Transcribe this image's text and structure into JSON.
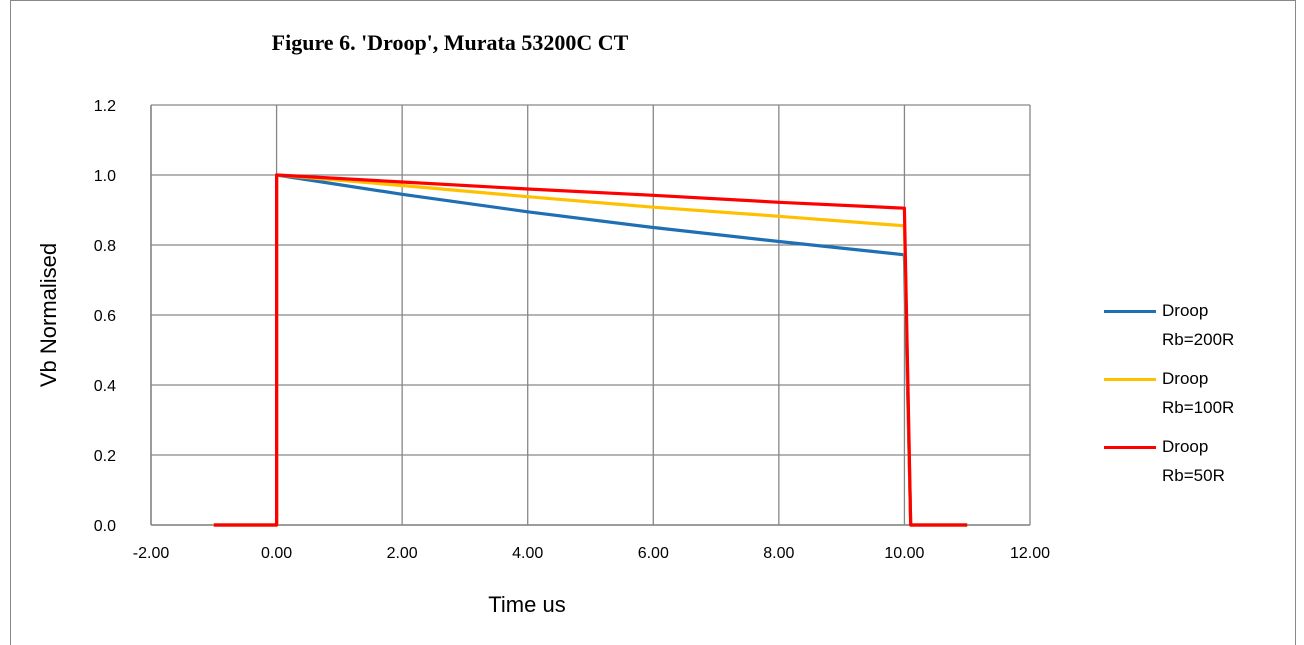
{
  "chart_data": {
    "type": "line",
    "title": "Figure 6. 'Droop', Murata 53200C CT",
    "xlabel": "Time us",
    "ylabel": "Vb Normalised",
    "xlim": [
      -2,
      12
    ],
    "ylim": [
      0,
      1.2
    ],
    "xticks": [
      "-2.00",
      "0.00",
      "2.00",
      "4.00",
      "6.00",
      "8.00",
      "10.00",
      "12.00"
    ],
    "yticks": [
      "0.0",
      "0.2",
      "0.4",
      "0.6",
      "0.8",
      "1.0",
      "1.2"
    ],
    "grid": true,
    "legend": "right",
    "series": [
      {
        "name": "Droop Rb=200R",
        "name_lines": [
          "Droop",
          "Rb=200R"
        ],
        "color": "#1F6FB4",
        "x": [
          -1,
          0,
          0,
          2,
          4,
          6,
          8,
          10,
          10.1,
          11
        ],
        "y": [
          0,
          0,
          1.0,
          0.945,
          0.895,
          0.85,
          0.81,
          0.772,
          0,
          0
        ]
      },
      {
        "name": "Droop Rb=100R",
        "name_lines": [
          "Droop",
          "Rb=100R"
        ],
        "color": "#FFC000",
        "x": [
          -1,
          0,
          0,
          2,
          4,
          6,
          8,
          10,
          10.1,
          11
        ],
        "y": [
          0,
          0,
          1.0,
          0.97,
          0.938,
          0.908,
          0.882,
          0.855,
          0,
          0
        ]
      },
      {
        "name": "Droop Rb=50R",
        "name_lines": [
          "Droop",
          "Rb=50R"
        ],
        "color": "#FF0000",
        "x": [
          -1,
          0,
          0,
          2,
          4,
          6,
          8,
          10,
          10.1,
          11
        ],
        "y": [
          0,
          0,
          1.0,
          0.98,
          0.96,
          0.942,
          0.922,
          0.905,
          0,
          0
        ]
      }
    ]
  }
}
